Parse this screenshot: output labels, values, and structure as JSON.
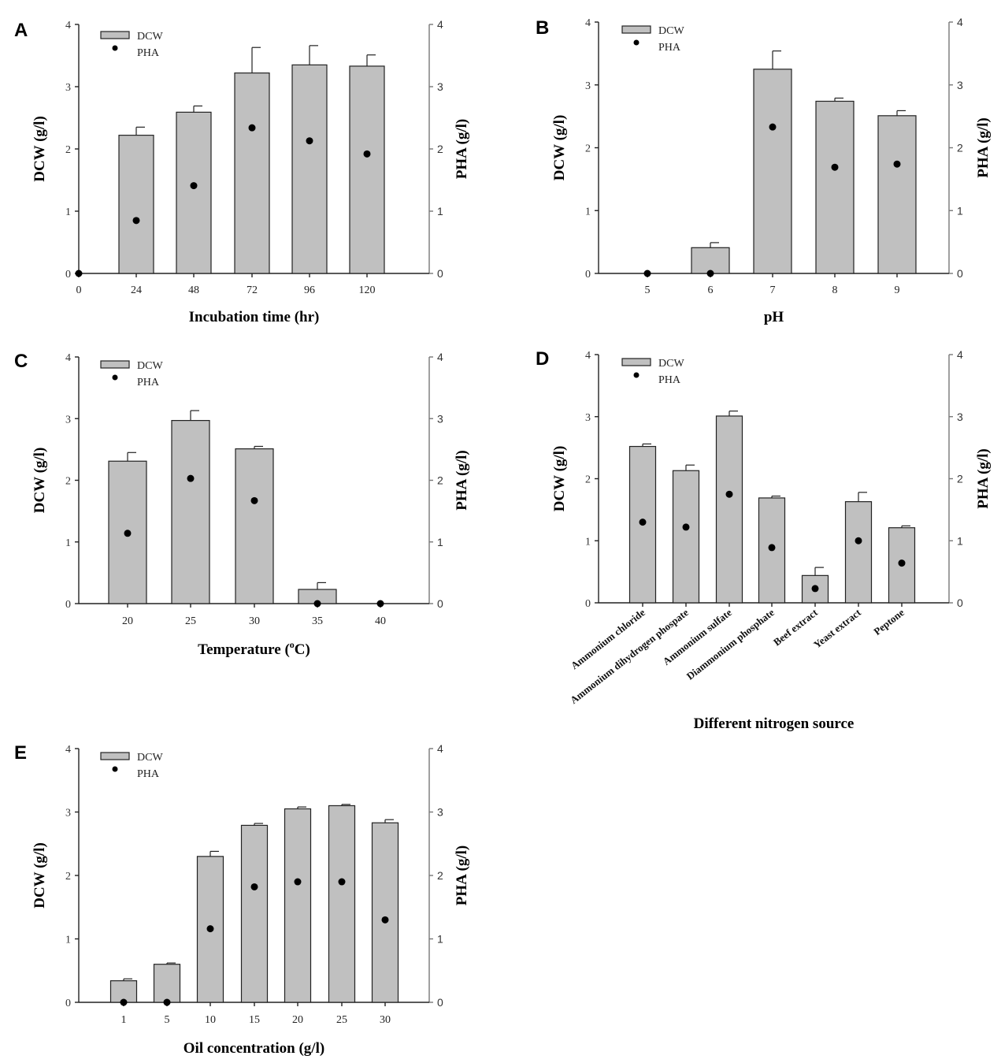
{
  "chart_data": [
    {
      "panel": "A",
      "type": "bar",
      "categories": [
        "0",
        "24",
        "48",
        "72",
        "96",
        "120"
      ],
      "x_ticks": [
        "0",
        "24",
        "48",
        "72",
        "96",
        "120"
      ],
      "xlabel": "Incubation time (hr)",
      "ylabel": "DCW (g/l)",
      "y2label": "PHA (g/l)",
      "ylim": [
        0,
        4
      ],
      "y2lim": [
        0,
        4
      ],
      "y_ticks": [
        "0",
        "1",
        "2",
        "3",
        "4"
      ],
      "legend": [
        "DCW",
        "PHA"
      ],
      "legend_position": "top-left",
      "series": [
        {
          "name": "DCW",
          "kind": "bar",
          "values": [
            null,
            2.22,
            2.59,
            3.22,
            3.35,
            3.33
          ],
          "error": [
            null,
            0.13,
            0.1,
            0.41,
            0.31,
            0.18
          ]
        },
        {
          "name": "PHA",
          "kind": "scatter",
          "axis": "right",
          "values": [
            0,
            0.85,
            1.41,
            2.34,
            2.13,
            1.92
          ]
        }
      ]
    },
    {
      "panel": "B",
      "type": "bar",
      "categories": [
        "5",
        "6",
        "7",
        "8",
        "9"
      ],
      "x_ticks": [
        "5",
        "6",
        "7",
        "8",
        "9"
      ],
      "xlabel": "pH",
      "ylabel": "DCW (g/l)",
      "y2label": "PHA (g/l)",
      "ylim": [
        0,
        4
      ],
      "y2lim": [
        0,
        4
      ],
      "y_ticks": [
        "0",
        "1",
        "2",
        "3",
        "4"
      ],
      "legend": [
        "DCW",
        "PHA"
      ],
      "legend_position": "top-left",
      "series": [
        {
          "name": "DCW",
          "kind": "bar",
          "values": [
            0,
            0.41,
            3.25,
            2.74,
            2.51
          ],
          "error": [
            0,
            0.08,
            0.29,
            0.05,
            0.08
          ]
        },
        {
          "name": "PHA",
          "kind": "scatter",
          "axis": "right",
          "values": [
            0,
            0,
            2.33,
            1.69,
            1.74
          ]
        }
      ]
    },
    {
      "panel": "C",
      "type": "bar",
      "categories": [
        "20",
        "25",
        "30",
        "35",
        "40"
      ],
      "x_ticks": [
        "20",
        "25",
        "30",
        "35",
        "40"
      ],
      "xlabel": "Temperature (°C)",
      "xlabel_parts": [
        "Temperature (",
        "o",
        "C)"
      ],
      "ylabel": "DCW (g/l)",
      "y2label": "PHA (g/l)",
      "ylim": [
        0,
        4
      ],
      "y2lim": [
        0,
        4
      ],
      "y_ticks": [
        "0",
        "1",
        "2",
        "3",
        "4"
      ],
      "legend": [
        "DCW",
        "PHA"
      ],
      "legend_position": "top-left",
      "series": [
        {
          "name": "DCW",
          "kind": "bar",
          "values": [
            2.31,
            2.97,
            2.51,
            0.23,
            0
          ],
          "error": [
            0.14,
            0.16,
            0.04,
            0.11,
            0
          ]
        },
        {
          "name": "PHA",
          "kind": "scatter",
          "axis": "right",
          "values": [
            1.14,
            2.03,
            1.67,
            0,
            0
          ]
        }
      ]
    },
    {
      "panel": "D",
      "type": "bar",
      "categories": [
        "Ammonium chloride",
        "Ammonium dihydrogen phospate",
        "Ammonium sulfate",
        "Diammonium phosphate",
        "Beef extract",
        "Yeast extract",
        "Peptone"
      ],
      "x_ticks": [
        "Ammonium chloride",
        "Ammonium dihydrogen phospate",
        "Ammonium sulfate",
        "Diammonium phosphate",
        "Beef extract",
        "Yeast extract",
        "Peptone"
      ],
      "xlabel": "Different nitrogen source",
      "ylabel": "DCW (g/l)",
      "y2label": "PHA (g/l)",
      "ylim": [
        0,
        4
      ],
      "y2lim": [
        0,
        4
      ],
      "y_ticks": [
        "0",
        "1",
        "2",
        "3",
        "4"
      ],
      "legend": [
        "DCW",
        "PHA"
      ],
      "legend_position": "top-left",
      "series": [
        {
          "name": "DCW",
          "kind": "bar",
          "values": [
            2.52,
            2.13,
            3.01,
            1.69,
            0.44,
            1.63,
            1.21
          ],
          "error": [
            0.04,
            0.09,
            0.08,
            0.03,
            0.13,
            0.15,
            0.03
          ]
        },
        {
          "name": "PHA",
          "kind": "scatter",
          "axis": "right",
          "values": [
            1.3,
            1.22,
            1.75,
            0.89,
            0.23,
            1.0,
            0.64
          ]
        }
      ]
    },
    {
      "panel": "E",
      "type": "bar",
      "categories": [
        "1",
        "5",
        "10",
        "15",
        "20",
        "25",
        "30"
      ],
      "x_ticks": [
        "1",
        "5",
        "10",
        "15",
        "20",
        "25",
        "30"
      ],
      "xlabel": "Oil concentration (g/l)",
      "ylabel": "DCW (g/l)",
      "y2label": "PHA (g/l)",
      "ylim": [
        0,
        4
      ],
      "y2lim": [
        0,
        4
      ],
      "y_ticks": [
        "0",
        "1",
        "2",
        "3",
        "4"
      ],
      "legend": [
        "DCW",
        "PHA"
      ],
      "legend_position": "top-left",
      "series": [
        {
          "name": "DCW",
          "kind": "bar",
          "values": [
            0.34,
            0.6,
            2.3,
            2.79,
            3.05,
            3.1,
            2.83
          ],
          "error": [
            0.03,
            0.02,
            0.08,
            0.03,
            0.03,
            0.02,
            0.05
          ]
        },
        {
          "name": "PHA",
          "kind": "scatter",
          "axis": "right",
          "values": [
            0,
            0,
            1.16,
            1.82,
            1.9,
            1.9,
            1.3
          ]
        }
      ]
    }
  ]
}
